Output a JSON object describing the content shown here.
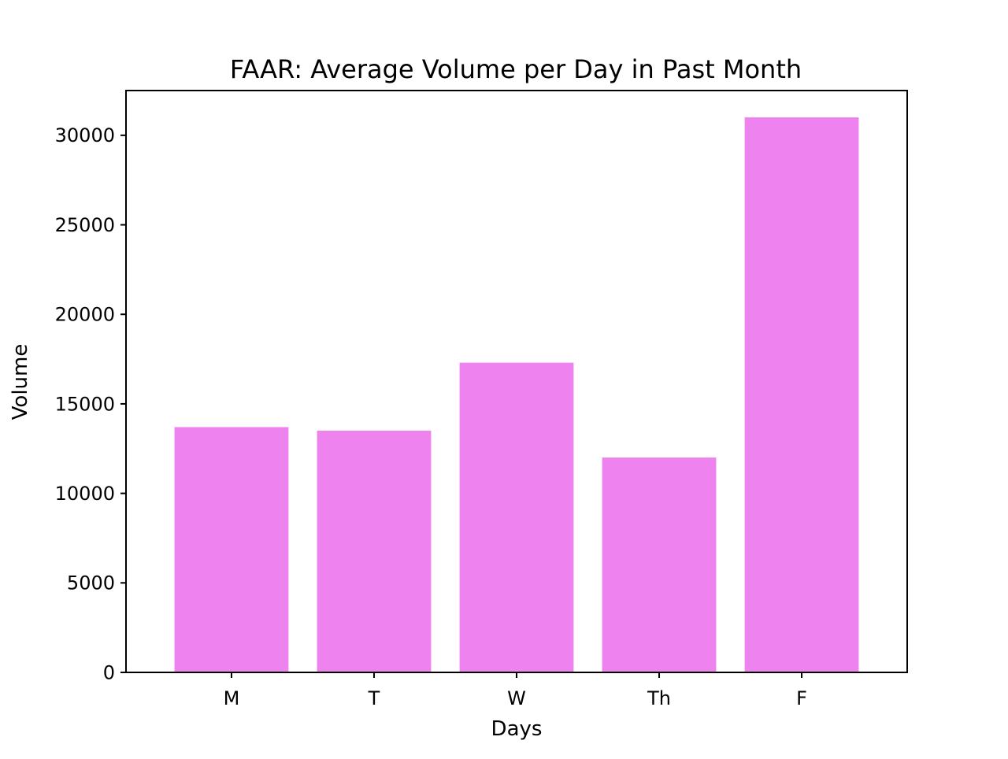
{
  "chart_data": {
    "type": "bar",
    "title": "FAAR: Average Volume per Day in Past Month",
    "xlabel": "Days",
    "ylabel": "Volume",
    "categories": [
      "M",
      "T",
      "W",
      "Th",
      "F"
    ],
    "values": [
      13700,
      13500,
      17300,
      12000,
      31000
    ],
    "ylim": [
      0,
      32500
    ],
    "yticks": [
      0,
      5000,
      10000,
      15000,
      20000,
      25000,
      30000
    ],
    "ytick_labels": [
      "0",
      "5000",
      "10000",
      "15000",
      "20000",
      "25000",
      "30000"
    ],
    "bar_color": "#ee82ee",
    "grid": false,
    "legend": "none"
  }
}
